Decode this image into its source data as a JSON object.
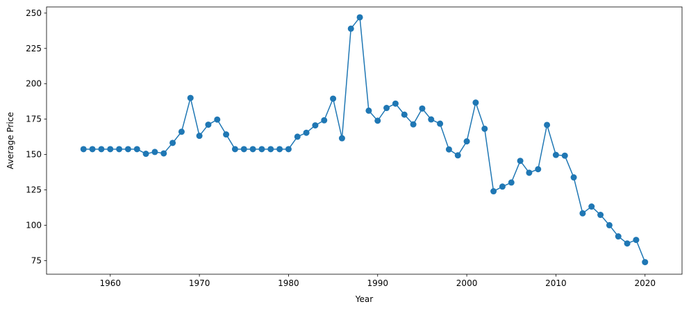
{
  "chart_data": {
    "type": "line",
    "title": "",
    "xlabel": "Year",
    "ylabel": "Average Price",
    "xlim": [
      1952.85,
      2024.15
    ],
    "ylim": [
      65.35,
      254.35
    ],
    "xticks": [
      1960,
      1970,
      1980,
      1990,
      2000,
      2010,
      2020
    ],
    "yticks": [
      75,
      100,
      125,
      150,
      175,
      200,
      225,
      250
    ],
    "grid": false,
    "legend": "none",
    "series": [
      {
        "color": "#1f77b4",
        "marker": "circle",
        "x": [
          1957,
          1958,
          1959,
          1960,
          1961,
          1962,
          1963,
          1964,
          1965,
          1966,
          1967,
          1968,
          1969,
          1970,
          1971,
          1972,
          1973,
          1974,
          1975,
          1976,
          1977,
          1978,
          1979,
          1980,
          1981,
          1982,
          1983,
          1984,
          1985,
          1986,
          1987,
          1988,
          1989,
          1990,
          1991,
          1992,
          1993,
          1994,
          1995,
          1996,
          1997,
          1998,
          1999,
          2000,
          2001,
          2002,
          2003,
          2004,
          2005,
          2006,
          2007,
          2008,
          2009,
          2010,
          2011,
          2012,
          2013,
          2014,
          2015,
          2016,
          2017,
          2018,
          2019,
          2020
        ],
        "y": [
          153.8,
          153.8,
          153.8,
          153.8,
          153.8,
          153.8,
          153.8,
          150.5,
          151.8,
          150.8,
          158.2,
          166.1,
          190.0,
          163.2,
          171.1,
          174.7,
          164.2,
          153.8,
          153.8,
          153.8,
          153.8,
          153.8,
          153.8,
          153.8,
          162.6,
          165.4,
          170.6,
          174.2,
          189.5,
          161.5,
          239.0,
          247.0,
          181.0,
          173.9,
          182.9,
          186.0,
          178.2,
          171.3,
          182.5,
          174.8,
          171.8,
          153.6,
          149.4,
          159.3,
          186.7,
          168.2,
          124.0,
          127.3,
          130.2,
          145.5,
          137.1,
          139.6,
          170.9,
          149.7,
          149.2,
          133.8,
          108.4,
          113.2,
          107.3,
          100.0,
          92.1,
          87.1,
          89.6,
          73.9
        ]
      }
    ]
  }
}
